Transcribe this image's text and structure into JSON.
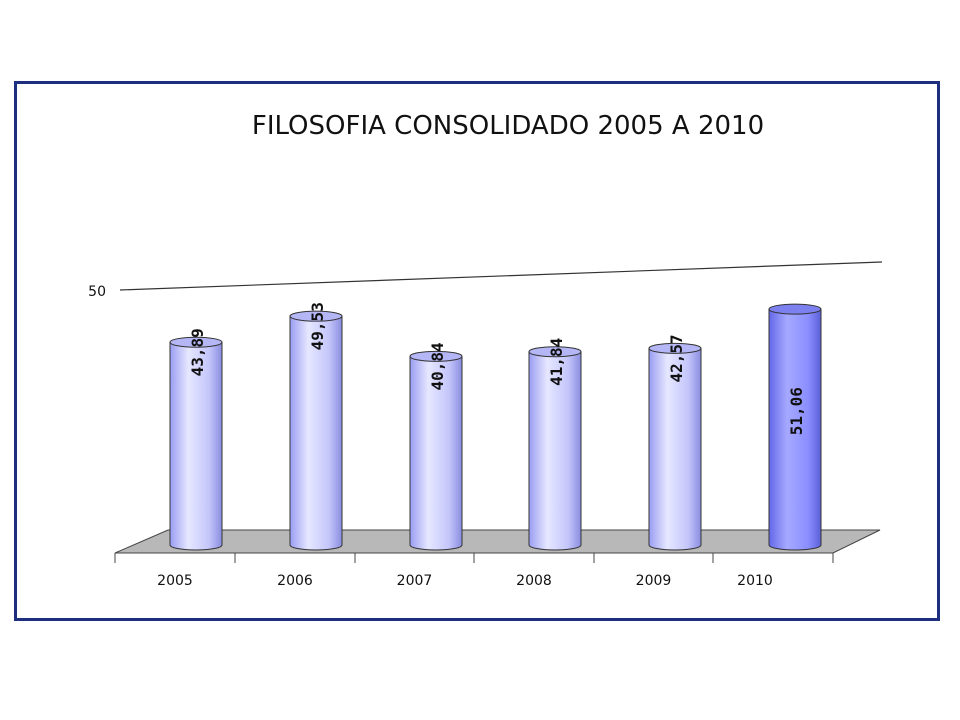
{
  "chart_data": {
    "type": "bar",
    "title": "FILOSOFIA CONSOLIDADO  2005 A 2010",
    "categories": [
      "2005",
      "2006",
      "2007",
      "2008",
      "2009",
      "2010"
    ],
    "values": [
      43.89,
      49.53,
      40.84,
      41.84,
      42.57,
      51.06
    ],
    "data_labels": [
      "43,89",
      "49,53",
      "40,84",
      "41,84",
      "42,57",
      "51,06"
    ],
    "highlight_category": "2010",
    "reference_line": {
      "label": "50"
    },
    "yticks": [
      "50"
    ],
    "grid": false,
    "legend": "none",
    "xlabel": "",
    "ylabel": "",
    "colors": {
      "bar_light_body": "#c9cbff",
      "bar_highlight_body": "#8f93ff",
      "floor": "#b8b8b8",
      "frame_border": "#1f2f7f"
    }
  }
}
